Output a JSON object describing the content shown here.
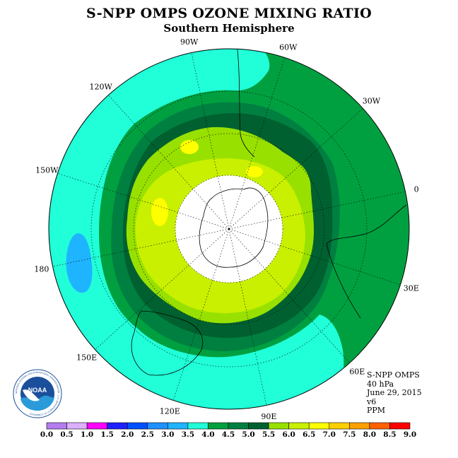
{
  "title": "S-NPP OMPS OZONE MIXING RATIO",
  "subtitle": "Southern Hemisphere",
  "longitude_labels": [
    {
      "text": "90W",
      "lon": -90
    },
    {
      "text": "60W",
      "lon": -60
    },
    {
      "text": "30W",
      "lon": -30
    },
    {
      "text": "0",
      "lon": 0
    },
    {
      "text": "30E",
      "lon": 30
    },
    {
      "text": "60E",
      "lon": 60
    },
    {
      "text": "90E",
      "lon": 90
    },
    {
      "text": "120E",
      "lon": 120
    },
    {
      "text": "150E",
      "lon": 150
    },
    {
      "text": "180",
      "lon": 180
    },
    {
      "text": "150W",
      "lon": -150
    },
    {
      "text": "120W",
      "lon": -120
    }
  ],
  "info": {
    "instrument": "S-NPP OMPS",
    "level": "40 hPa",
    "date": "June 29, 2015",
    "version": "v6",
    "units": "PPM"
  },
  "logo": {
    "text": "NOAA",
    "ring_text": "NATIONAL OCEANIC AND ATMOSPHERIC ADMINISTRATION · U.S. DEPARTMENT OF COMMERCE"
  },
  "colorbar": {
    "ticks": [
      "0.0",
      "0.5",
      "1.0",
      "1.5",
      "2.0",
      "2.5",
      "3.0",
      "3.5",
      "4.0",
      "4.5",
      "5.0",
      "5.5",
      "6.0",
      "6.5",
      "7.0",
      "7.5",
      "8.0",
      "8.5",
      "9.0"
    ],
    "colors": [
      "#b57cf0",
      "#dcb0ff",
      "#ff00ff",
      "#2020ff",
      "#0050ff",
      "#1e90ff",
      "#1eb4ff",
      "#20ffd8",
      "#00a040",
      "#008040",
      "#006030",
      "#98e000",
      "#c8f000",
      "#ffff00",
      "#ffd000",
      "#ffa000",
      "#ff6000",
      "#ff0000",
      "#8b5a3c"
    ]
  },
  "colors": {
    "cyan": "#20ffd8",
    "light_blue": "#1eb4ff",
    "green_4_45": "#00a040",
    "green_45_5": "#008040",
    "dark_green": "#006030",
    "yellow_green": "#98e000",
    "lime": "#c8f000",
    "yellow": "#ffff00",
    "polar_gap": "#ffffff"
  }
}
